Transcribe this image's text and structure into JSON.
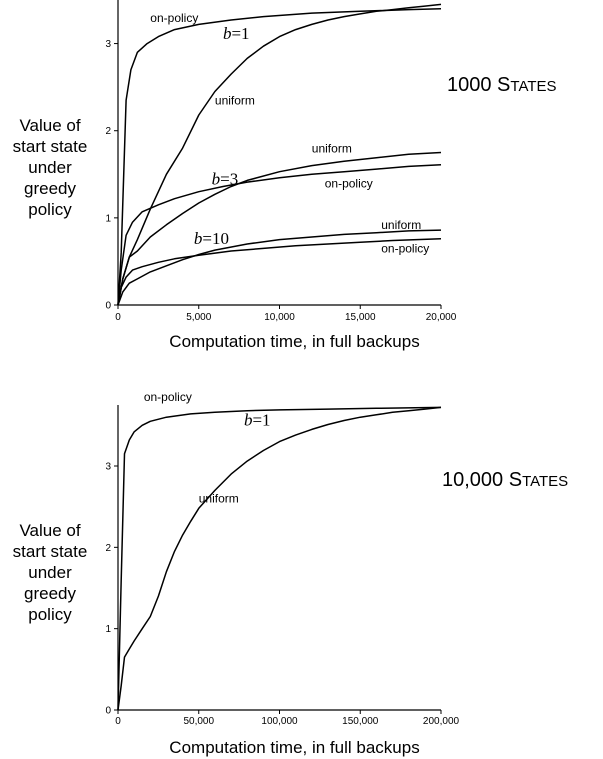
{
  "chart_data": [
    {
      "type": "line",
      "title_main": "1000",
      "title_first": "S",
      "title_rest": "TATES",
      "xlabel": "Computation time, in full backups",
      "ylabel": [
        "Value of",
        "start state",
        "under",
        "greedy",
        "policy"
      ],
      "xlim": [
        0,
        20000
      ],
      "ylim": [
        0,
        3.5
      ],
      "x_ticks": [
        0,
        5000,
        10000,
        15000,
        20000
      ],
      "x_tick_labels": [
        "0",
        "5,000",
        "10,000",
        "15,000",
        "20,000"
      ],
      "y_ticks": [
        0,
        1,
        2,
        3
      ],
      "y_tick_labels": [
        "0",
        "1",
        "2",
        "3"
      ],
      "grid": false,
      "b_labels": [
        {
          "b": "b",
          "value": "=1"
        },
        {
          "b": "b",
          "value": "=3"
        },
        {
          "b": "b",
          "value": "=10"
        }
      ],
      "series": [
        {
          "name": "on-policy",
          "group": "b=1",
          "x": [
            0,
            200,
            500,
            800,
            1200,
            1800,
            2500,
            3500,
            5000,
            7000,
            9000,
            12000,
            15000,
            18000,
            20000
          ],
          "y": [
            0,
            0.6,
            2.35,
            2.7,
            2.9,
            3.0,
            3.08,
            3.16,
            3.22,
            3.27,
            3.31,
            3.35,
            3.37,
            3.39,
            3.4
          ]
        },
        {
          "name": "uniform",
          "group": "b=1",
          "x": [
            0,
            300,
            700,
            1200,
            2000,
            3000,
            4000,
            5000,
            6000,
            7000,
            8000,
            9000,
            10000,
            11000,
            12000,
            13000,
            14000,
            15000,
            16000,
            17000,
            18000,
            19000,
            20000
          ],
          "y": [
            0,
            0.3,
            0.55,
            0.75,
            1.1,
            1.5,
            1.8,
            2.18,
            2.45,
            2.65,
            2.83,
            2.97,
            3.08,
            3.16,
            3.22,
            3.27,
            3.31,
            3.34,
            3.37,
            3.39,
            3.41,
            3.43,
            3.45
          ]
        },
        {
          "name": "uniform",
          "group": "b=3",
          "x": [
            0,
            300,
            700,
            1200,
            2000,
            3000,
            4000,
            5000,
            6000,
            7000,
            8000,
            10000,
            12000,
            14000,
            16000,
            18000,
            20000
          ],
          "y": [
            0,
            0.3,
            0.55,
            0.62,
            0.78,
            0.92,
            1.05,
            1.17,
            1.27,
            1.36,
            1.43,
            1.53,
            1.6,
            1.65,
            1.69,
            1.73,
            1.75
          ]
        },
        {
          "name": "on-policy",
          "group": "b=3",
          "x": [
            0,
            200,
            500,
            900,
            1500,
            2500,
            3500,
            5000,
            6500,
            8000,
            10000,
            12000,
            14000,
            16000,
            18000,
            20000
          ],
          "y": [
            0,
            0.4,
            0.8,
            0.95,
            1.07,
            1.15,
            1.22,
            1.3,
            1.36,
            1.41,
            1.46,
            1.5,
            1.53,
            1.56,
            1.59,
            1.61
          ]
        },
        {
          "name": "uniform",
          "group": "b=10",
          "x": [
            0,
            300,
            700,
            1200,
            2000,
            3000,
            4000,
            5000,
            6000,
            8000,
            10000,
            12000,
            14000,
            16000,
            18000,
            20000
          ],
          "y": [
            0,
            0.15,
            0.25,
            0.3,
            0.38,
            0.45,
            0.52,
            0.58,
            0.63,
            0.7,
            0.75,
            0.78,
            0.81,
            0.83,
            0.85,
            0.86
          ]
        },
        {
          "name": "on-policy",
          "group": "b=10",
          "x": [
            0,
            200,
            500,
            900,
            1500,
            2500,
            3500,
            5000,
            7000,
            9000,
            11000,
            13000,
            15000,
            17000,
            20000
          ],
          "y": [
            0,
            0.2,
            0.32,
            0.4,
            0.44,
            0.49,
            0.53,
            0.57,
            0.62,
            0.65,
            0.68,
            0.7,
            0.72,
            0.74,
            0.76
          ]
        }
      ],
      "curve_labels": [
        {
          "text": "on-policy",
          "x": 2000,
          "y": 3.25
        },
        {
          "text": "uniform",
          "x": 6000,
          "y": 2.3
        },
        {
          "text": "uniform",
          "x": 12000,
          "y": 1.75
        },
        {
          "text": "on-policy",
          "x": 12800,
          "y": 1.35
        },
        {
          "text": "uniform",
          "x": 16300,
          "y": 0.87
        },
        {
          "text": "on-policy",
          "x": 16300,
          "y": 0.6
        }
      ],
      "b_label_positions": [
        {
          "x": 6500,
          "y": 3.05
        },
        {
          "x": 5800,
          "y": 1.38
        },
        {
          "x": 4700,
          "y": 0.7
        }
      ]
    },
    {
      "type": "line",
      "title_main": "10,000",
      "title_first": "S",
      "title_rest": "TATES",
      "xlabel": "Computation time, in full backups",
      "ylabel": [
        "Value of",
        "start state",
        "under",
        "greedy",
        "policy"
      ],
      "xlim": [
        0,
        200000
      ],
      "ylim": [
        0,
        3.75
      ],
      "x_ticks": [
        0,
        50000,
        100000,
        150000,
        200000
      ],
      "x_tick_labels": [
        "0",
        "50,000",
        "100,000",
        "150,000",
        "200,000"
      ],
      "y_ticks": [
        0,
        1,
        2,
        3
      ],
      "y_tick_labels": [
        "0",
        "1",
        "2",
        "3"
      ],
      "grid": false,
      "b_labels": [
        {
          "b": "b",
          "value": "=1"
        }
      ],
      "series": [
        {
          "name": "on-policy",
          "group": "b=1",
          "x": [
            0,
            2000,
            4000,
            7000,
            10000,
            15000,
            20000,
            30000,
            45000,
            60000,
            80000,
            100000,
            130000,
            160000,
            200000
          ],
          "y": [
            0,
            1.6,
            3.15,
            3.32,
            3.42,
            3.5,
            3.55,
            3.6,
            3.64,
            3.66,
            3.68,
            3.69,
            3.7,
            3.71,
            3.72
          ]
        },
        {
          "name": "uniform",
          "group": "b=1",
          "x": [
            0,
            2000,
            4000,
            7000,
            10000,
            15000,
            20000,
            25000,
            30000,
            35000,
            40000,
            45000,
            50000,
            60000,
            70000,
            80000,
            90000,
            100000,
            110000,
            120000,
            130000,
            140000,
            150000,
            160000,
            170000,
            180000,
            190000,
            200000
          ],
          "y": [
            0,
            0.3,
            0.65,
            0.75,
            0.85,
            1.0,
            1.15,
            1.4,
            1.7,
            1.95,
            2.15,
            2.32,
            2.48,
            2.7,
            2.9,
            3.06,
            3.19,
            3.3,
            3.38,
            3.45,
            3.51,
            3.56,
            3.6,
            3.63,
            3.66,
            3.68,
            3.7,
            3.72
          ]
        }
      ],
      "curve_labels": [
        {
          "text": "on-policy",
          "x": 16000,
          "y": 3.8
        },
        {
          "text": "uniform",
          "x": 50000,
          "y": 2.55
        }
      ],
      "b_label_positions": [
        {
          "x": 78000,
          "y": 3.5
        }
      ]
    }
  ]
}
